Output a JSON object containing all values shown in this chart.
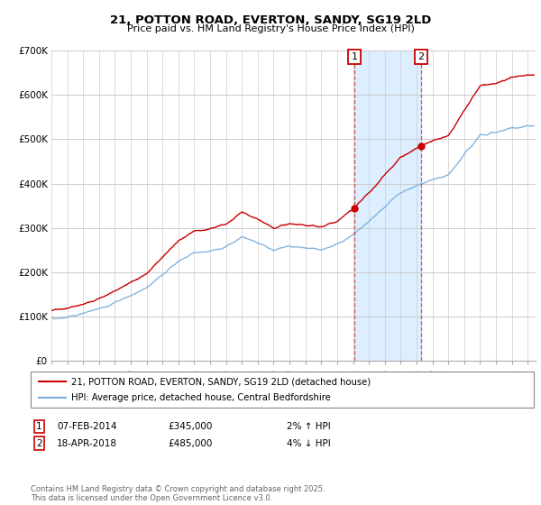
{
  "title": "21, POTTON ROAD, EVERTON, SANDY, SG19 2LD",
  "subtitle": "Price paid vs. HM Land Registry's House Price Index (HPI)",
  "ylim": [
    0,
    700000
  ],
  "yticks": [
    0,
    100000,
    200000,
    300000,
    400000,
    500000,
    600000,
    700000
  ],
  "ytick_labels": [
    "£0",
    "£100K",
    "£200K",
    "£300K",
    "£400K",
    "£500K",
    "£600K",
    "£700K"
  ],
  "xlim_start": 1995.0,
  "xlim_end": 2025.5,
  "line1_color": "#cc0000",
  "line2_color": "#7aaedc",
  "shade_color": "#ddeeff",
  "marker1_x": 2014.09,
  "marker1_y": 345000,
  "marker2_x": 2018.29,
  "marker2_y": 485000,
  "vline1_x": 2014.09,
  "vline2_x": 2018.29,
  "legend_line1": "21, POTTON ROAD, EVERTON, SANDY, SG19 2LD (detached house)",
  "legend_line2": "HPI: Average price, detached house, Central Bedfordshire",
  "annotation1_num": "1",
  "annotation1_date": "07-FEB-2014",
  "annotation1_price": "£345,000",
  "annotation1_hpi": "2% ↑ HPI",
  "annotation2_num": "2",
  "annotation2_date": "18-APR-2018",
  "annotation2_price": "£485,000",
  "annotation2_hpi": "4% ↓ HPI",
  "footer": "Contains HM Land Registry data © Crown copyright and database right 2025.\nThis data is licensed under the Open Government Licence v3.0.",
  "background_color": "#ffffff",
  "grid_color": "#cccccc",
  "hpi_key_years": [
    1995,
    1996,
    1997,
    1998,
    1999,
    2000,
    2001,
    2002,
    2003,
    2004,
    2005,
    2006,
    2007,
    2008,
    2009,
    2010,
    2011,
    2012,
    2013,
    2014,
    2015,
    2016,
    2017,
    2018,
    2019,
    2020,
    2021,
    2022,
    2023,
    2024,
    2025
  ],
  "hpi_key_values": [
    95000,
    99000,
    107000,
    118000,
    132000,
    148000,
    165000,
    195000,
    225000,
    245000,
    248000,
    258000,
    280000,
    268000,
    250000,
    258000,
    255000,
    252000,
    263000,
    285000,
    315000,
    348000,
    380000,
    395000,
    408000,
    418000,
    465000,
    510000,
    515000,
    525000,
    530000
  ]
}
